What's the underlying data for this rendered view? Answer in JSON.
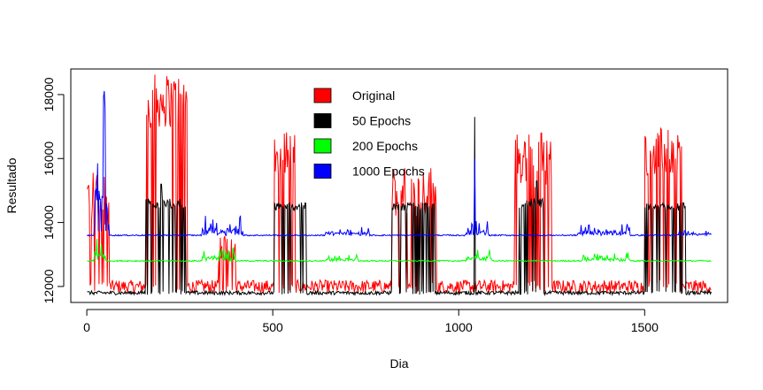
{
  "chart_data": {
    "type": "line",
    "title": "",
    "xlabel": "Dia",
    "ylabel": "Resultado",
    "xlim": [
      -43,
      1723
    ],
    "ylim": [
      11500,
      18800
    ],
    "x_ticks": [
      0,
      500,
      1000,
      1500
    ],
    "x_tick_labels": [
      "0",
      "500",
      "1000",
      "1500"
    ],
    "y_ticks": [
      12000,
      14000,
      16000,
      18000
    ],
    "y_tick_labels": [
      "12000",
      "14000",
      "16000",
      "18000"
    ],
    "grid": false,
    "legend_position": "top-center",
    "x_range": [
      1,
      1680
    ],
    "series": [
      {
        "name": "Original",
        "color": "#ff0000",
        "baseline": 12000,
        "noise": 400,
        "segments": [
          {
            "x": [
              1,
              60
            ],
            "level": 14800,
            "noise": 1800
          },
          {
            "x": [
              160,
              270
            ],
            "level": 17800,
            "noise": 1700
          },
          {
            "x": [
              355,
              400
            ],
            "level": 13200,
            "noise": 900
          },
          {
            "x": [
              505,
              560
            ],
            "level": 16200,
            "noise": 1500
          },
          {
            "x": [
              820,
              940
            ],
            "level": 15000,
            "noise": 1600
          },
          {
            "x": [
              1150,
              1250
            ],
            "level": 16000,
            "noise": 1800
          },
          {
            "x": [
              1500,
              1600
            ],
            "level": 16200,
            "noise": 1500
          }
        ]
      },
      {
        "name": "50 Epochs",
        "color": "#000000",
        "baseline": 11800,
        "noise": 120,
        "segments": [
          {
            "x": [
              155,
              265
            ],
            "level": 14600,
            "noise": 300
          },
          {
            "x": [
              505,
              590
            ],
            "level": 14500,
            "noise": 250
          },
          {
            "x": [
              820,
              935
            ],
            "level": 14500,
            "noise": 250
          },
          {
            "x": [
              1160,
              1230
            ],
            "level": 14600,
            "noise": 300
          },
          {
            "x": [
              1500,
              1610
            ],
            "level": 14500,
            "noise": 250
          }
        ],
        "spikes": [
          {
            "x": 1043,
            "y": 17300
          },
          {
            "x": 200,
            "y": 15200
          },
          {
            "x": 1210,
            "y": 15300
          }
        ]
      },
      {
        "name": "200 Epochs",
        "color": "#00ff00",
        "baseline": 12800,
        "noise": 40,
        "bumps": [
          {
            "x": [
              20,
              50
            ],
            "amp": 900
          },
          {
            "x": [
              310,
              400
            ],
            "amp": 400
          },
          {
            "x": [
              640,
              730
            ],
            "amp": 200
          },
          {
            "x": [
              1020,
              1090
            ],
            "amp": 400
          },
          {
            "x": [
              1330,
              1460
            ],
            "amp": 250
          }
        ]
      },
      {
        "name": "1000 Epochs",
        "color": "#0000ff",
        "baseline": 13600,
        "noise": 40,
        "bumps": [
          {
            "x": [
              20,
              60
            ],
            "amp": 4900
          },
          {
            "x": [
              310,
              420
            ],
            "amp": 700
          },
          {
            "x": [
              640,
              760
            ],
            "amp": 300
          },
          {
            "x": [
              1020,
              1080
            ],
            "amp": 500
          },
          {
            "x": [
              1320,
              1460
            ],
            "amp": 400
          },
          {
            "x": [
              1590,
              1680
            ],
            "amp": 150
          }
        ],
        "spikes": [
          {
            "x": 1043,
            "y": 16000
          }
        ]
      }
    ]
  }
}
